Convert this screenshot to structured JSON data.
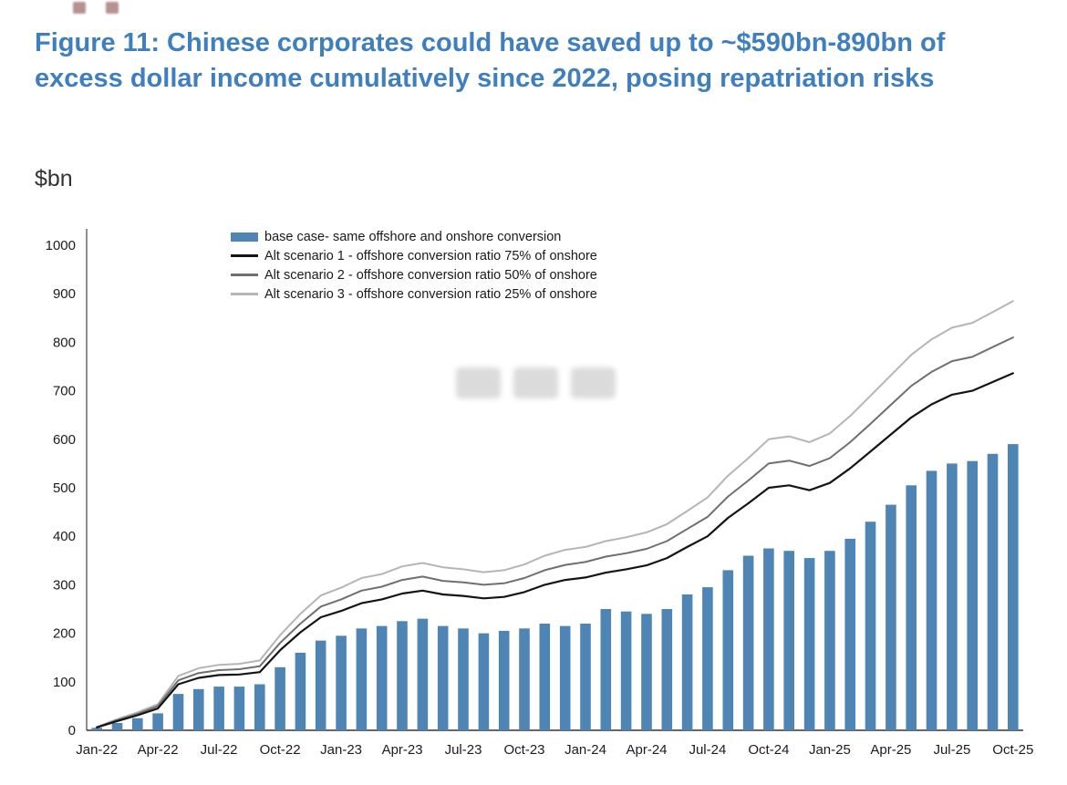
{
  "figure": {
    "title": "Figure 11: Chinese corporates could have saved up to ~$590bn-890bn of excess dollar income cumulatively since 2022, posing repatriation risks",
    "unit_label": "$bn",
    "title_color": "#3f7fbe"
  },
  "chart_data": {
    "type": "bar",
    "subtype": "bar-with-lines",
    "x": [
      "Jan-22",
      "Feb-22",
      "Mar-22",
      "Apr-22",
      "May-22",
      "Jun-22",
      "Jul-22",
      "Aug-22",
      "Sep-22",
      "Oct-22",
      "Nov-22",
      "Dec-22",
      "Jan-23",
      "Feb-23",
      "Mar-23",
      "Apr-23",
      "May-23",
      "Jun-23",
      "Jul-23",
      "Aug-23",
      "Sep-23",
      "Oct-23",
      "Nov-23",
      "Dec-23",
      "Jan-24",
      "Feb-24",
      "Mar-24",
      "Apr-24",
      "May-24",
      "Jun-24",
      "Jul-24",
      "Aug-24",
      "Sep-24",
      "Oct-24",
      "Nov-24",
      "Dec-24",
      "Jan-25",
      "Feb-25",
      "Mar-25",
      "Apr-25",
      "May-25",
      "Jun-25",
      "Jul-25",
      "Aug-25",
      "Sep-25",
      "Oct-25"
    ],
    "x_tick_labels": [
      "Jan-22",
      "Apr-22",
      "Jul-22",
      "Oct-22",
      "Jan-23",
      "Apr-23",
      "Jul-23",
      "Oct-23",
      "Jan-24",
      "Apr-24",
      "Jul-24",
      "Oct-24",
      "Jan-25",
      "Apr-25",
      "Jul-25",
      "Oct-25"
    ],
    "x_tick_every": 3,
    "ylim": [
      0,
      1000
    ],
    "yticks": [
      0,
      100,
      200,
      300,
      400,
      500,
      600,
      700,
      800,
      900,
      1000
    ],
    "grid": false,
    "legend_position": "top-left-inside",
    "series": [
      {
        "name": "base case- same offshore and onshore conversion",
        "type": "bar",
        "color": "#4f85b5",
        "values": [
          5,
          15,
          25,
          35,
          75,
          85,
          90,
          90,
          95,
          130,
          160,
          185,
          195,
          210,
          215,
          225,
          230,
          215,
          210,
          200,
          205,
          210,
          220,
          215,
          220,
          250,
          245,
          240,
          250,
          280,
          295,
          330,
          360,
          375,
          370,
          355,
          370,
          395,
          430,
          465,
          505,
          535,
          550,
          555,
          570,
          590
        ]
      },
      {
        "name": "Alt scenario 1 - offshore conversion ratio 75% of onshore",
        "type": "line",
        "color": "#141414",
        "width": 2.2,
        "values": [
          6,
          19,
          31,
          45,
          95,
          108,
          114,
          115,
          120,
          165,
          202,
          233,
          246,
          262,
          270,
          282,
          288,
          280,
          277,
          272,
          275,
          285,
          300,
          310,
          315,
          325,
          332,
          340,
          355,
          378,
          400,
          438,
          468,
          500,
          505,
          495,
          510,
          540,
          575,
          610,
          645,
          672,
          692,
          700,
          718,
          736
        ]
      },
      {
        "name": "Alt scenario 2 - offshore conversion ratio 50% of onshore",
        "type": "line",
        "color": "#6f6f6f",
        "width": 2,
        "values": [
          6,
          21,
          34,
          50,
          103,
          118,
          124,
          126,
          132,
          180,
          220,
          255,
          270,
          288,
          296,
          310,
          317,
          308,
          305,
          300,
          303,
          314,
          330,
          341,
          347,
          358,
          365,
          374,
          390,
          415,
          440,
          482,
          515,
          550,
          556,
          545,
          561,
          594,
          632,
          671,
          710,
          739,
          761,
          770,
          790,
          810
        ]
      },
      {
        "name": "Alt scenario 3 - offshore conversion ratio 25% of onshore",
        "type": "line",
        "color": "#b5b5b5",
        "width": 2,
        "values": [
          7,
          23,
          37,
          54,
          112,
          128,
          135,
          137,
          144,
          196,
          240,
          278,
          294,
          314,
          322,
          338,
          345,
          336,
          332,
          326,
          330,
          342,
          360,
          372,
          378,
          390,
          398,
          408,
          425,
          452,
          480,
          525,
          561,
          600,
          606,
          594,
          612,
          648,
          690,
          732,
          774,
          806,
          830,
          840,
          862,
          885
        ]
      }
    ]
  }
}
